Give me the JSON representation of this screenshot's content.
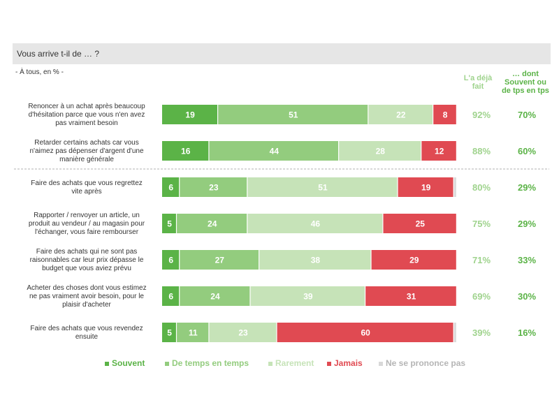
{
  "question": "Vous arrive t-il de … ?",
  "base_note": "- À tous, en % -",
  "column_headers": {
    "already_done": [
      "L'a déjà",
      "fait"
    ],
    "often": [
      "… dont",
      "Souvent ou",
      "de tps en tps"
    ]
  },
  "colors": {
    "Souvent": "#5bb347",
    "De temps en temps": "#93cc7e",
    "Rarement": "#c6e3b8",
    "Jamais": "#e04a52",
    "Ne se prononce pas": "#d9d9d9"
  },
  "chart_data": {
    "type": "bar",
    "orientation": "horizontal",
    "stacked": true,
    "legend_position": "bottom",
    "categories": [
      [
        "Renoncer à un achat après beaucoup",
        "d'hésitation parce que vous n'en avez",
        "pas vraiment besoin"
      ],
      [
        "Retarder certains achats car vous",
        "n'aimez pas dépenser d'argent d'une",
        "manière générale"
      ],
      [
        "Faire des achats que vous regrettez",
        "vite après"
      ],
      [
        "Rapporter / renvoyer un article, un",
        "produit au vendeur / au magasin pour",
        "l'échanger, vous faire rembourser"
      ],
      [
        "Faire des achats qui ne sont pas",
        "raisonnables car leur prix dépasse le",
        "budget que vous aviez prévu"
      ],
      [
        "Acheter des choses dont vous estimez",
        "ne pas vraiment avoir besoin, pour le",
        "plaisir d'acheter"
      ],
      [
        "Faire des achats que vous revendez",
        "ensuite"
      ]
    ],
    "series": [
      {
        "name": "Souvent",
        "values": [
          19,
          16,
          6,
          5,
          6,
          6,
          5
        ]
      },
      {
        "name": "De temps en temps",
        "values": [
          51,
          44,
          23,
          24,
          27,
          24,
          11
        ]
      },
      {
        "name": "Rarement",
        "values": [
          22,
          28,
          51,
          46,
          38,
          39,
          23
        ]
      },
      {
        "name": "Jamais",
        "values": [
          8,
          12,
          19,
          25,
          29,
          31,
          60
        ]
      },
      {
        "name": "Ne se prononce pas",
        "values": [
          0,
          0,
          1,
          0,
          0,
          0,
          1
        ]
      }
    ],
    "already_done": [
      "92%",
      "88%",
      "80%",
      "75%",
      "71%",
      "69%",
      "39%"
    ],
    "often_or_sometimes": [
      "70%",
      "60%",
      "29%",
      "29%",
      "33%",
      "30%",
      "16%"
    ]
  }
}
